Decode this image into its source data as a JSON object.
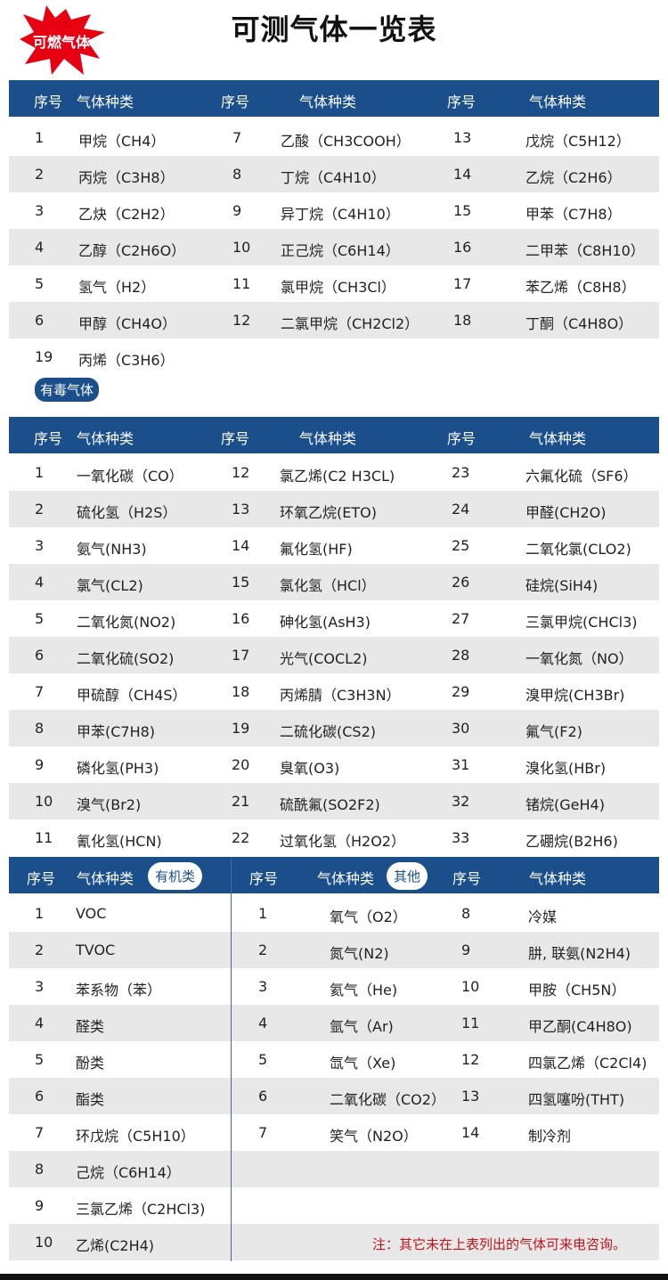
{
  "title": "可测气体一览表",
  "colors": {
    "header": "#1a4f8c",
    "stripe": "#e8e8e8",
    "burst": "#e60012",
    "note": "#c0141c"
  },
  "header_labels": {
    "num": "序号",
    "name": "气体种类"
  },
  "flammable": {
    "label": "可燃气体",
    "rows": [
      [
        "1",
        "甲烷（CH4）",
        "7",
        "乙酸（CH3COOH）",
        "13",
        "戊烷（C5H12）"
      ],
      [
        "2",
        "丙烷（C3H8）",
        "8",
        "丁烷（C4H10）",
        "14",
        "乙烷（C2H6）"
      ],
      [
        "3",
        "乙炔（C2H2）",
        "9",
        "异丁烷（C4H10）",
        "15",
        "甲苯（C7H8）"
      ],
      [
        "4",
        "乙醇（C2H6O）",
        "10",
        "正己烷（C6H14）",
        "16",
        "二甲苯（C8H10）"
      ],
      [
        "5",
        "氢气（H2）",
        "11",
        "氯甲烷（CH3Cl）",
        "17",
        "苯乙烯（C8H8）"
      ],
      [
        "6",
        "甲醇（CH4O）",
        "12",
        "二氯甲烷（CH2Cl2）",
        "18",
        "丁酮（C4H8O）"
      ],
      [
        "19",
        "丙烯（C3H6）",
        "",
        "",
        "",
        ""
      ]
    ]
  },
  "toxic": {
    "label": "有毒气体",
    "rows": [
      [
        "1",
        "一氧化碳（CO）",
        "12",
        "氯乙烯(C2 H3CL)",
        "23",
        "六氟化硫（SF6）"
      ],
      [
        "2",
        "硫化氢（H2S）",
        "13",
        "环氧乙烷(ETO)",
        "24",
        "甲醛(CH2O)"
      ],
      [
        "3",
        "氨气(NH3)",
        "14",
        "氟化氢(HF)",
        "25",
        "二氧化氯(CLO2)"
      ],
      [
        "4",
        "氯气(CL2)",
        "15",
        "氯化氢（HCl）",
        "26",
        "硅烷(SiH4)"
      ],
      [
        "5",
        "二氧化氮(NO2)",
        "16",
        "砷化氢(AsH3)",
        "27",
        "三氯甲烷(CHCl3)"
      ],
      [
        "6",
        "二氧化硫(SO2)",
        "17",
        "光气(COCL2)",
        "28",
        "一氧化氮（NO）"
      ],
      [
        "7",
        "甲硫醇（CH4S）",
        "18",
        "丙烯腈（C3H3N）",
        "29",
        "溴甲烷(CH3Br)"
      ],
      [
        "8",
        "甲苯(C7H8)",
        "19",
        "二硫化碳(CS2)",
        "30",
        "氟气(F2)"
      ],
      [
        "9",
        "磷化氢(PH3)",
        "20",
        "臭氧(O3)",
        "31",
        "溴化氢(HBr)"
      ],
      [
        "10",
        "溴气(Br2)",
        "21",
        "硫酰氟(SO2F2)",
        "32",
        "锗烷(GeH4)"
      ],
      [
        "11",
        "氰化氢(HCN)",
        "22",
        "过氧化氢（H2O2）",
        "33",
        "乙硼烷(B2H6)"
      ]
    ]
  },
  "organic_label": "有机类",
  "other_label": "其他",
  "third_rows": [
    [
      "1",
      "VOC",
      "1",
      "氧气（O2）",
      "8",
      "冷媒"
    ],
    [
      "2",
      "TVOC",
      "2",
      "氮气(N2)",
      "9",
      "肼, 联氨(N2H4)"
    ],
    [
      "3",
      "苯系物（苯）",
      "3",
      "氦气（He)",
      "10",
      "甲胺（CH5N）"
    ],
    [
      "4",
      "醛类",
      "4",
      "氩气（Ar)",
      "11",
      "甲乙酮(C4H8O)"
    ],
    [
      "5",
      "酚类",
      "5",
      "氙气（Xe)",
      "12",
      "四氯乙烯（C2Cl4)"
    ],
    [
      "6",
      "酯类",
      "6",
      "二氧化碳（CO2）",
      "13",
      "四氢噻吩(THT)"
    ],
    [
      "7",
      "环戊烷（C5H10）",
      "7",
      "笑气（N2O）",
      "14",
      "制冷剂"
    ],
    [
      "8",
      "己烷（C6H14）",
      "",
      "",
      "",
      ""
    ],
    [
      "9",
      "三氯乙烯（C2HCl3)",
      "",
      "",
      "",
      ""
    ],
    [
      "10",
      "乙烯(C2H4)",
      "",
      "",
      "",
      ""
    ]
  ],
  "note": "注：其它未在上表列出的气体可来电咨询。"
}
